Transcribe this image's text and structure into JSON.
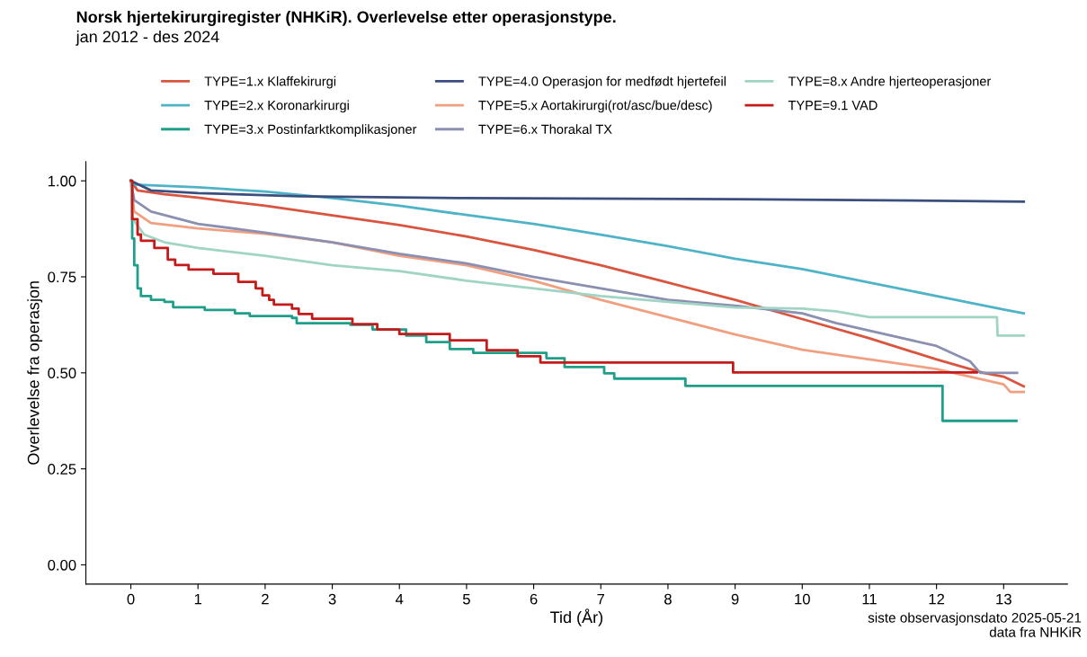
{
  "chart_data": {
    "type": "step",
    "title": "Norsk hjertekirurgiregister (NHKiR). Overlevelse etter operasjonstype.",
    "subtitle": "jan 2012 - des 2024",
    "xlabel": "Tid (År)",
    "ylabel": "Overlevelse fra operasjon",
    "xlim": [
      -0.67,
      13.95
    ],
    "ylim": [
      -0.05,
      1.05
    ],
    "xticks": [
      0,
      1,
      2,
      3,
      4,
      5,
      6,
      7,
      8,
      9,
      10,
      11,
      12,
      13
    ],
    "yticks": [
      {
        "value": 0,
        "label": "0.00"
      },
      {
        "value": 0.25,
        "label": "0.25"
      },
      {
        "value": 0.5,
        "label": "0.50"
      },
      {
        "value": 0.75,
        "label": "0.75"
      },
      {
        "value": 1,
        "label": "1.00"
      }
    ],
    "grid": false,
    "legend": "top",
    "marker": "none",
    "line_style": "solid",
    "series": [
      {
        "type": "line",
        "name": "TYPE=1.x Klaffekirurgi",
        "color": "#d9553f",
        "x": [
          0,
          0.1,
          0.5,
          1,
          2,
          3,
          4,
          5,
          6,
          7,
          8,
          9,
          10,
          11,
          12,
          12.7,
          13,
          13.3
        ],
        "values": [
          1.0,
          0.975,
          0.965,
          0.956,
          0.935,
          0.91,
          0.885,
          0.855,
          0.82,
          0.78,
          0.735,
          0.69,
          0.64,
          0.59,
          0.535,
          0.5,
          0.49,
          0.465
        ]
      },
      {
        "type": "line",
        "name": "TYPE=2.x Koronarkirurgi",
        "color": "#4fb3c8",
        "x": [
          0,
          0.05,
          1,
          2,
          3,
          4,
          5,
          6,
          7,
          8,
          9,
          10,
          11,
          12,
          13,
          13.3
        ],
        "values": [
          1.0,
          0.99,
          0.983,
          0.972,
          0.955,
          0.935,
          0.911,
          0.888,
          0.86,
          0.83,
          0.797,
          0.77,
          0.735,
          0.7,
          0.665,
          0.655
        ]
      },
      {
        "name": "TYPE=3.x Postinfarktkomplikasjoner",
        "color": "#1f9e89",
        "x": [
          0,
          0.02,
          0.05,
          0.1,
          0.15,
          0.3,
          0.5,
          0.63,
          1.1,
          1.55,
          1.77,
          2.4,
          2.47,
          3.27,
          3.6,
          4.1,
          4.4,
          4.75,
          5.1,
          6.19,
          6.46,
          7.05,
          7.2,
          8.26,
          12.09,
          13.19
        ],
        "values": [
          1.0,
          0.85,
          0.78,
          0.72,
          0.7,
          0.69,
          0.685,
          0.671,
          0.664,
          0.655,
          0.648,
          0.643,
          0.629,
          0.625,
          0.613,
          0.597,
          0.58,
          0.562,
          0.552,
          0.538,
          0.515,
          0.499,
          0.485,
          0.466,
          0.375,
          0.375
        ]
      },
      {
        "type": "line",
        "name": "TYPE=4.0 Operasjon for medfødt hjertefeil",
        "color": "#3b4f7f",
        "x": [
          0,
          0.3,
          1,
          2.5,
          5,
          9,
          12,
          13.3
        ],
        "values": [
          1.0,
          0.975,
          0.968,
          0.96,
          0.955,
          0.952,
          0.948,
          0.946
        ]
      },
      {
        "type": "line",
        "name": "TYPE=5.x Aortakirurgi(rot/asc/bue/desc)",
        "color": "#f0a080",
        "x": [
          0,
          0.05,
          0.3,
          1,
          2,
          3,
          4,
          5,
          6,
          7,
          8,
          9,
          10,
          11,
          12,
          12.5,
          13,
          13.1,
          13.3
        ],
        "values": [
          1.0,
          0.92,
          0.89,
          0.876,
          0.862,
          0.84,
          0.805,
          0.78,
          0.74,
          0.69,
          0.645,
          0.6,
          0.56,
          0.535,
          0.51,
          0.49,
          0.47,
          0.45,
          0.45
        ]
      },
      {
        "type": "line",
        "name": "TYPE=6.x Thorakal TX",
        "color": "#8b8fb0",
        "x": [
          0,
          0.05,
          0.3,
          1,
          2,
          3,
          4,
          5,
          6,
          7,
          8,
          9,
          10,
          10.5,
          11,
          11.5,
          12,
          12.5,
          12.65,
          13.2
        ],
        "values": [
          1.0,
          0.95,
          0.92,
          0.888,
          0.865,
          0.84,
          0.81,
          0.785,
          0.75,
          0.72,
          0.69,
          0.675,
          0.655,
          0.63,
          0.61,
          0.59,
          0.57,
          0.53,
          0.5,
          0.5
        ]
      },
      {
        "type": "line",
        "name": "TYPE=8.x Andre hjerteoperasjoner",
        "color": "#a0d4c4",
        "x": [
          0,
          0.03,
          0.2,
          0.5,
          1,
          2,
          3,
          4,
          5,
          6,
          7,
          8,
          9,
          10,
          10.5,
          11,
          12.9,
          12.91,
          13.3
        ],
        "values": [
          1.0,
          0.9,
          0.86,
          0.84,
          0.825,
          0.805,
          0.78,
          0.765,
          0.74,
          0.72,
          0.7,
          0.685,
          0.67,
          0.667,
          0.66,
          0.645,
          0.645,
          0.597,
          0.597
        ]
      },
      {
        "name": "TYPE=9.1 VAD",
        "color": "#c41a1a",
        "x": [
          0,
          0.02,
          0.1,
          0.15,
          0.35,
          0.55,
          0.66,
          0.86,
          1.23,
          1.6,
          1.86,
          1.96,
          2.06,
          2.13,
          2.4,
          2.5,
          2.7,
          3.3,
          3.67,
          4.0,
          4.75,
          5.3,
          5.76,
          6.1,
          8.97,
          12.6
        ],
        "values": [
          1.0,
          0.9,
          0.86,
          0.844,
          0.825,
          0.795,
          0.781,
          0.769,
          0.758,
          0.737,
          0.72,
          0.702,
          0.69,
          0.678,
          0.667,
          0.653,
          0.641,
          0.627,
          0.613,
          0.601,
          0.585,
          0.559,
          0.543,
          0.527,
          0.501,
          0.501
        ]
      }
    ],
    "annotations": [
      "siste observasjonsdato 2025-05-21",
      "data fra NHKiR"
    ]
  }
}
